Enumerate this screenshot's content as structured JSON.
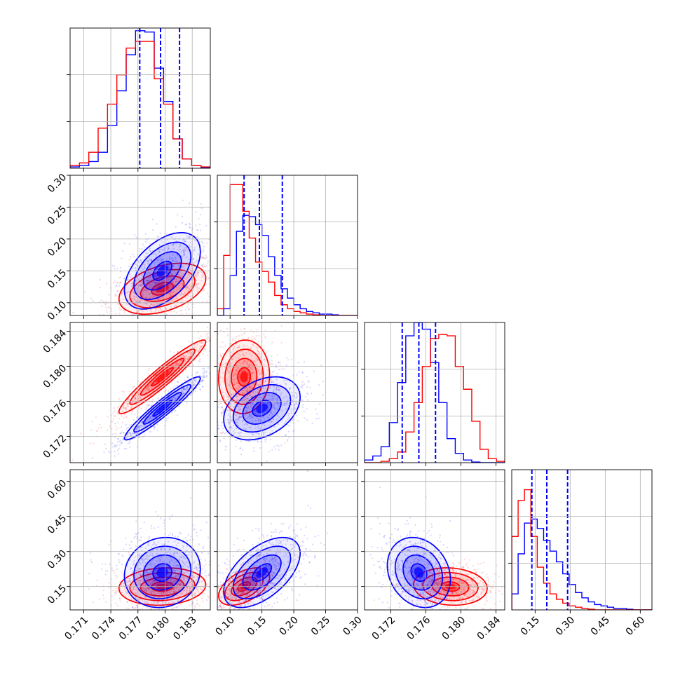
{
  "chart_data": {
    "type": "corner",
    "title": "",
    "series": [
      {
        "name": "",
        "color": "#0000ff"
      },
      {
        "name": "",
        "color": "#ff0000"
      }
    ],
    "quantile_line_color": "#0000ff",
    "grid": true,
    "params": [
      {
        "range": [
          0.1695,
          0.185
        ],
        "ticks": [
          0.171,
          0.174,
          0.177,
          0.18,
          0.183
        ],
        "tick_labels": [
          "0.171",
          "0.174",
          "0.177",
          "0.180",
          "0.183"
        ],
        "quantiles": [
          0.1772,
          0.1795,
          0.1816
        ],
        "hist_ymax": 1.05,
        "hist_bins": 15,
        "hist": {
          "blue": [
            0.01,
            0.02,
            0.05,
            0.12,
            0.32,
            0.58,
            0.85,
            1.03,
            1.02,
            0.75,
            0.5,
            0.22,
            0.07,
            0.02,
            0.005
          ],
          "red": [
            0.02,
            0.04,
            0.12,
            0.3,
            0.48,
            0.7,
            0.9,
            0.95,
            0.95,
            0.67,
            0.48,
            0.22,
            0.07,
            0.02,
            0.01
          ]
        }
      },
      {
        "range": [
          0.08,
          0.3
        ],
        "ticks": [
          0.1,
          0.15,
          0.2,
          0.25,
          0.3
        ],
        "tick_labels": [
          "0.10",
          "0.15",
          "0.20",
          "0.25",
          "0.30"
        ],
        "quantiles": [
          0.122,
          0.146,
          0.182
        ],
        "hist_ymax": 1.05,
        "hist_bins": 22,
        "hist": {
          "blue": [
            0.0,
            0.05,
            0.3,
            0.63,
            0.75,
            0.74,
            0.68,
            0.6,
            0.44,
            0.3,
            0.2,
            0.13,
            0.08,
            0.05,
            0.03,
            0.02,
            0.01,
            0.01,
            0.005,
            0.0,
            0.0,
            0.0
          ],
          "red": [
            0.05,
            0.45,
            0.98,
            0.98,
            0.78,
            0.58,
            0.4,
            0.33,
            0.25,
            0.15,
            0.08,
            0.05,
            0.03,
            0.02,
            0.01,
            0.005,
            0.0,
            0.0,
            0.0,
            0.0,
            0.0,
            0.0
          ]
        }
      },
      {
        "range": [
          0.169,
          0.185
        ],
        "ticks": [
          0.172,
          0.176,
          0.18,
          0.184
        ],
        "tick_labels": [
          "0.172",
          "0.176",
          "0.180",
          "0.184"
        ],
        "quantiles": [
          0.1733,
          0.1752,
          0.1771
        ],
        "hist_ymax": 1.05,
        "hist_bins": 17,
        "hist": {
          "blue": [
            0.02,
            0.05,
            0.12,
            0.3,
            0.6,
            0.95,
            1.05,
            1.0,
            0.75,
            0.45,
            0.18,
            0.07,
            0.02,
            0.005,
            0.0,
            0.0,
            0.0
          ],
          "red": [
            0.0,
            0.0,
            0.01,
            0.03,
            0.08,
            0.23,
            0.45,
            0.72,
            0.93,
            0.96,
            0.95,
            0.72,
            0.55,
            0.31,
            0.1,
            0.03,
            0.01
          ]
        }
      },
      {
        "range": [
          0.05,
          0.65
        ],
        "ticks": [
          0.15,
          0.3,
          0.45,
          0.6
        ],
        "tick_labels": [
          "0.15",
          "0.30",
          "0.45",
          "0.60"
        ],
        "quantiles": [
          0.136,
          0.2,
          0.289
        ],
        "hist_ymax": 1.05,
        "hist_bins": 22,
        "hist": {
          "blue": [
            0.12,
            0.42,
            0.65,
            0.68,
            0.61,
            0.52,
            0.44,
            0.36,
            0.27,
            0.19,
            0.13,
            0.09,
            0.06,
            0.04,
            0.03,
            0.02,
            0.01,
            0.01,
            0.005,
            0.0,
            0.0,
            0.0
          ],
          "red": [
            0.55,
            0.82,
            0.9,
            0.55,
            0.32,
            0.2,
            0.12,
            0.08,
            0.05,
            0.03,
            0.02,
            0.01,
            0.005,
            0.0,
            0.0,
            0.0,
            0.0,
            0.0,
            0.0,
            0.0,
            0.0,
            0.0
          ]
        }
      }
    ],
    "pairs": [
      {
        "row": 1,
        "col": 0,
        "blue": {
          "center": [
            0.1797,
            0.15
          ],
          "sd": [
            0.0021,
            0.03
          ],
          "corr": 0.5
        },
        "red": {
          "center": [
            0.1797,
            0.122
          ],
          "sd": [
            0.0024,
            0.02
          ],
          "corr": 0.4
        }
      },
      {
        "row": 2,
        "col": 0,
        "blue": {
          "center": [
            0.1797,
            0.1752
          ],
          "sd": [
            0.0021,
            0.0018
          ],
          "corr": 0.95
        },
        "red": {
          "center": [
            0.1797,
            0.1788
          ],
          "sd": [
            0.0024,
            0.0021
          ],
          "corr": 0.95
        }
      },
      {
        "row": 2,
        "col": 1,
        "blue": {
          "center": [
            0.15,
            0.1752
          ],
          "sd": [
            0.03,
            0.0018
          ],
          "corr": 0.35
        },
        "red": {
          "center": [
            0.122,
            0.1788
          ],
          "sd": [
            0.02,
            0.0021
          ],
          "corr": 0.05
        }
      },
      {
        "row": 3,
        "col": 0,
        "blue": {
          "center": [
            0.1797,
            0.21
          ],
          "sd": [
            0.0021,
            0.075
          ],
          "corr": 0.1
        },
        "red": {
          "center": [
            0.1797,
            0.15
          ],
          "sd": [
            0.0024,
            0.04
          ],
          "corr": 0.1
        }
      },
      {
        "row": 3,
        "col": 1,
        "blue": {
          "center": [
            0.15,
            0.21
          ],
          "sd": [
            0.03,
            0.075
          ],
          "corr": 0.55
        },
        "red": {
          "center": [
            0.122,
            0.15
          ],
          "sd": [
            0.02,
            0.04
          ],
          "corr": 0.5
        }
      },
      {
        "row": 3,
        "col": 2,
        "blue": {
          "center": [
            0.1752,
            0.21
          ],
          "sd": [
            0.0018,
            0.075
          ],
          "corr": -0.2
        },
        "red": {
          "center": [
            0.1788,
            0.15
          ],
          "sd": [
            0.0021,
            0.04
          ],
          "corr": -0.1
        }
      }
    ]
  }
}
